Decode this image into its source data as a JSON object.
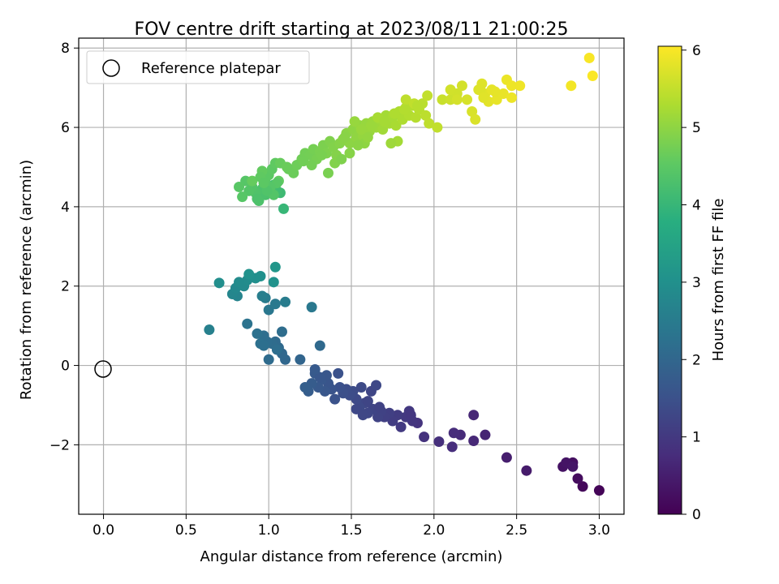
{
  "chart_data": {
    "type": "scatter",
    "title": "FOV centre drift starting at 2023/08/11 21:00:25",
    "xlabel": "Angular distance from reference (arcmin)",
    "ylabel": "Rotation from reference (arcmin)",
    "xlim": [
      -0.15,
      3.15
    ],
    "ylim": [
      -3.75,
      8.25
    ],
    "x_ticks": [
      0.0,
      0.5,
      1.0,
      1.5,
      2.0,
      2.5,
      3.0
    ],
    "x_tick_labels": [
      "0.0",
      "0.5",
      "1.0",
      "1.5",
      "2.0",
      "2.5",
      "3.0"
    ],
    "y_ticks": [
      -2,
      0,
      2,
      4,
      6,
      8
    ],
    "y_tick_labels": [
      "−2",
      "0",
      "2",
      "4",
      "6",
      "8"
    ],
    "grid": true,
    "legend": {
      "placement": "top-left",
      "entries": [
        "Reference platepar"
      ]
    },
    "reference_point": {
      "x": 0.0,
      "y": 0.0
    },
    "colorbar": {
      "label": "Hours from first FF file",
      "range": [
        0,
        6.05
      ],
      "ticks": [
        0,
        1,
        2,
        3,
        4,
        5,
        6
      ],
      "tick_labels": [
        "0",
        "1",
        "2",
        "3",
        "4",
        "5",
        "6"
      ],
      "colormap": "viridis"
    },
    "series": [
      {
        "points": [
          [
            3.0,
            -3.15,
            0.05
          ],
          [
            2.9,
            -3.05,
            0.12
          ],
          [
            2.87,
            -2.85,
            0.2
          ],
          [
            2.84,
            -2.45,
            0.25
          ],
          [
            2.78,
            -2.55,
            0.3
          ],
          [
            2.8,
            -2.45,
            0.33
          ],
          [
            2.84,
            -2.55,
            0.36
          ],
          [
            2.56,
            -2.65,
            0.45
          ],
          [
            2.44,
            -2.32,
            0.5
          ],
          [
            2.31,
            -1.75,
            0.6
          ],
          [
            2.24,
            -1.25,
            0.65
          ],
          [
            2.24,
            -1.9,
            0.68
          ],
          [
            2.16,
            -1.75,
            0.72
          ],
          [
            2.12,
            -1.7,
            0.75
          ],
          [
            2.11,
            -2.05,
            0.78
          ],
          [
            2.03,
            -1.92,
            0.82
          ],
          [
            1.94,
            -1.8,
            0.86
          ],
          [
            1.9,
            -1.45,
            0.9
          ],
          [
            1.87,
            -1.4,
            0.95
          ],
          [
            1.85,
            -1.15,
            0.98
          ],
          [
            1.83,
            -1.3,
            1.0
          ],
          [
            1.8,
            -1.55,
            1.03
          ],
          [
            1.78,
            -1.25,
            1.06
          ],
          [
            1.75,
            -1.4,
            1.09
          ],
          [
            1.73,
            -1.2,
            1.12
          ],
          [
            1.7,
            -1.3,
            1.15
          ],
          [
            1.68,
            -1.15,
            1.18
          ],
          [
            1.66,
            -1.3,
            1.2
          ],
          [
            1.63,
            -1.1,
            1.23
          ],
          [
            1.6,
            -1.2,
            1.26
          ],
          [
            1.58,
            -0.95,
            1.29
          ],
          [
            1.55,
            -1.05,
            1.32
          ],
          [
            1.53,
            -0.85,
            1.35
          ],
          [
            1.51,
            -0.65,
            1.38
          ],
          [
            1.49,
            -0.75,
            1.41
          ],
          [
            1.47,
            -0.6,
            1.44
          ],
          [
            1.45,
            -0.7,
            1.47
          ],
          [
            1.43,
            -0.55,
            1.5
          ],
          [
            1.4,
            -0.85,
            1.53
          ],
          [
            1.38,
            -0.6,
            1.56
          ],
          [
            1.36,
            -0.45,
            1.59
          ],
          [
            1.34,
            -0.65,
            1.62
          ],
          [
            1.32,
            -0.35,
            1.65
          ],
          [
            1.3,
            -0.55,
            1.68
          ],
          [
            1.28,
            -0.2,
            1.71
          ],
          [
            1.26,
            -0.45,
            1.74
          ],
          [
            1.24,
            -0.65,
            1.77
          ],
          [
            1.22,
            -0.55,
            1.8
          ],
          [
            1.6,
            -0.9,
            1.25
          ],
          [
            1.62,
            -0.65,
            1.27
          ],
          [
            1.65,
            -0.5,
            1.3
          ],
          [
            1.56,
            -0.55,
            1.34
          ],
          [
            1.42,
            -0.2,
            1.52
          ],
          [
            1.35,
            -0.25,
            1.6
          ],
          [
            1.31,
            -0.3,
            1.64
          ],
          [
            1.28,
            -0.1,
            1.7
          ],
          [
            1.53,
            -1.1,
            1.31
          ],
          [
            1.57,
            -1.25,
            1.28
          ],
          [
            1.86,
            -1.25,
            0.97
          ],
          [
            1.67,
            -1.05,
            1.18
          ],
          [
            1.19,
            0.15,
            1.95
          ],
          [
            1.1,
            0.15,
            2.0
          ],
          [
            1.08,
            0.3,
            2.03
          ],
          [
            1.06,
            0.45,
            2.06
          ],
          [
            1.04,
            0.6,
            2.09
          ],
          [
            1.02,
            0.55,
            2.12
          ],
          [
            0.99,
            0.6,
            2.15
          ],
          [
            0.97,
            0.75,
            2.18
          ],
          [
            0.95,
            0.55,
            2.21
          ],
          [
            0.93,
            0.8,
            2.24
          ],
          [
            1.0,
            0.15,
            2.1
          ],
          [
            1.08,
            0.85,
            2.14
          ],
          [
            1.05,
            0.4,
            2.17
          ],
          [
            0.97,
            0.5,
            2.2
          ],
          [
            1.31,
            0.5,
            2.05
          ],
          [
            0.87,
            1.05,
            2.3
          ],
          [
            1.0,
            1.4,
            2.4
          ],
          [
            1.04,
            1.55,
            2.45
          ],
          [
            0.98,
            1.7,
            2.5
          ],
          [
            1.1,
            1.6,
            2.52
          ],
          [
            0.96,
            1.75,
            2.55
          ],
          [
            1.26,
            1.47,
            2.42
          ],
          [
            0.64,
            0.9,
            2.6
          ],
          [
            0.81,
            1.75,
            2.7
          ],
          [
            0.78,
            1.8,
            2.75
          ],
          [
            0.8,
            1.95,
            2.8
          ],
          [
            0.85,
            2.0,
            2.85
          ],
          [
            0.87,
            2.15,
            2.9
          ],
          [
            0.82,
            2.1,
            2.88
          ],
          [
            0.7,
            2.08,
            2.95
          ],
          [
            0.92,
            2.2,
            2.98
          ],
          [
            0.95,
            2.25,
            3.0
          ],
          [
            0.88,
            2.3,
            3.05
          ],
          [
            1.03,
            2.1,
            3.05
          ],
          [
            1.04,
            2.48,
            3.15
          ],
          [
            1.09,
            3.95,
            4.0
          ],
          [
            1.07,
            4.35,
            4.1
          ],
          [
            1.05,
            4.4,
            4.15
          ],
          [
            1.03,
            4.55,
            4.2
          ],
          [
            1.0,
            4.4,
            4.25
          ],
          [
            0.98,
            4.3,
            4.28
          ],
          [
            0.96,
            4.45,
            4.3
          ],
          [
            0.94,
            4.15,
            4.32
          ],
          [
            0.92,
            4.35,
            4.35
          ],
          [
            0.9,
            4.5,
            4.38
          ],
          [
            0.88,
            4.4,
            4.4
          ],
          [
            0.86,
            4.65,
            4.42
          ],
          [
            0.84,
            4.25,
            4.44
          ],
          [
            0.82,
            4.5,
            4.46
          ],
          [
            0.98,
            4.7,
            4.48
          ],
          [
            1.0,
            4.8,
            4.5
          ],
          [
            1.02,
            4.95,
            4.52
          ],
          [
            1.04,
            5.1,
            4.55
          ],
          [
            1.06,
            4.65,
            4.57
          ],
          [
            0.96,
            4.9,
            4.58
          ],
          [
            0.9,
            4.65,
            4.6
          ],
          [
            1.07,
            5.1,
            4.62
          ],
          [
            1.12,
            4.95,
            4.64
          ],
          [
            1.15,
            4.85,
            4.66
          ],
          [
            1.17,
            5.05,
            4.68
          ],
          [
            1.2,
            5.2,
            4.7
          ],
          [
            1.22,
            5.35,
            4.72
          ],
          [
            1.25,
            5.3,
            4.74
          ],
          [
            1.27,
            5.45,
            4.76
          ],
          [
            1.29,
            5.2,
            4.78
          ],
          [
            1.31,
            5.4,
            4.8
          ],
          [
            1.33,
            5.55,
            4.82
          ],
          [
            1.35,
            5.35,
            4.84
          ],
          [
            1.37,
            5.65,
            4.86
          ],
          [
            1.39,
            5.5,
            4.88
          ],
          [
            1.41,
            5.3,
            4.9
          ],
          [
            1.43,
            5.6,
            4.92
          ],
          [
            1.45,
            5.7,
            4.94
          ],
          [
            1.47,
            5.85,
            4.96
          ],
          [
            1.49,
            5.6,
            4.98
          ],
          [
            1.51,
            5.95,
            5.0
          ],
          [
            1.53,
            5.75,
            5.02
          ],
          [
            1.55,
            6.05,
            5.04
          ],
          [
            1.57,
            5.8,
            5.06
          ],
          [
            1.59,
            6.1,
            5.08
          ],
          [
            1.61,
            5.9,
            5.1
          ],
          [
            1.63,
            6.15,
            5.12
          ],
          [
            1.65,
            6.0,
            5.14
          ],
          [
            1.67,
            6.2,
            5.16
          ],
          [
            1.69,
            5.95,
            5.18
          ],
          [
            1.71,
            6.3,
            5.2
          ],
          [
            1.73,
            6.1,
            5.22
          ],
          [
            1.75,
            6.25,
            5.24
          ],
          [
            1.77,
            6.05,
            5.26
          ],
          [
            1.79,
            6.4,
            5.28
          ],
          [
            1.81,
            6.2,
            5.3
          ],
          [
            1.83,
            6.5,
            5.32
          ],
          [
            1.85,
            6.3,
            5.34
          ],
          [
            1.87,
            6.55,
            5.36
          ],
          [
            1.89,
            6.25,
            5.38
          ],
          [
            1.91,
            6.45,
            5.4
          ],
          [
            1.93,
            6.6,
            5.42
          ],
          [
            1.95,
            6.3,
            5.44
          ],
          [
            1.97,
            6.1,
            5.46
          ],
          [
            2.02,
            6.0,
            5.48
          ],
          [
            1.83,
            6.7,
            5.45
          ],
          [
            1.88,
            6.6,
            5.47
          ],
          [
            1.96,
            6.8,
            5.49
          ],
          [
            1.78,
            5.65,
            5.2
          ],
          [
            1.74,
            5.6,
            5.15
          ],
          [
            1.58,
            5.6,
            5.0
          ],
          [
            1.54,
            5.55,
            4.97
          ],
          [
            1.49,
            5.35,
            4.93
          ],
          [
            1.4,
            5.1,
            4.88
          ],
          [
            1.36,
            4.85,
            4.8
          ],
          [
            1.44,
            5.2,
            4.85
          ],
          [
            1.6,
            5.75,
            5.05
          ],
          [
            1.56,
            5.95,
            5.1
          ],
          [
            1.62,
            6.05,
            5.12
          ],
          [
            1.52,
            6.15,
            5.08
          ],
          [
            1.05,
            4.6,
            4.45
          ],
          [
            1.03,
            4.3,
            4.4
          ],
          [
            1.01,
            4.5,
            4.42
          ],
          [
            0.99,
            4.4,
            4.36
          ],
          [
            0.93,
            4.2,
            4.32
          ],
          [
            0.95,
            4.75,
            4.55
          ],
          [
            0.97,
            4.6,
            4.5
          ],
          [
            1.11,
            5.0,
            4.65
          ],
          [
            1.21,
            5.15,
            4.72
          ],
          [
            1.26,
            5.05,
            4.75
          ],
          [
            1.32,
            5.3,
            4.8
          ],
          [
            1.46,
            5.75,
            4.95
          ],
          [
            1.66,
            6.25,
            5.25
          ],
          [
            1.7,
            6.15,
            5.22
          ],
          [
            1.76,
            6.35,
            5.3
          ],
          [
            1.82,
            6.45,
            5.35
          ],
          [
            1.9,
            6.55,
            5.4
          ],
          [
            2.05,
            6.7,
            5.55
          ],
          [
            2.1,
            6.7,
            5.6
          ],
          [
            2.14,
            6.85,
            5.62
          ],
          [
            2.17,
            7.05,
            5.65
          ],
          [
            2.2,
            6.7,
            5.68
          ],
          [
            2.23,
            6.4,
            5.7
          ],
          [
            2.25,
            6.2,
            5.72
          ],
          [
            2.27,
            6.95,
            5.74
          ],
          [
            2.29,
            7.1,
            5.76
          ],
          [
            2.31,
            6.85,
            5.78
          ],
          [
            2.33,
            6.65,
            5.8
          ],
          [
            2.35,
            6.95,
            5.82
          ],
          [
            2.38,
            6.7,
            5.84
          ],
          [
            2.42,
            6.85,
            5.86
          ],
          [
            2.44,
            7.2,
            5.88
          ],
          [
            2.47,
            6.75,
            5.9
          ],
          [
            2.52,
            7.05,
            5.92
          ],
          [
            2.1,
            6.95,
            5.63
          ],
          [
            2.14,
            6.7,
            5.66
          ],
          [
            2.28,
            6.95,
            5.75
          ],
          [
            2.3,
            6.75,
            5.78
          ],
          [
            2.37,
            6.9,
            5.83
          ],
          [
            2.47,
            7.05,
            5.91
          ],
          [
            2.83,
            7.05,
            5.96
          ],
          [
            2.94,
            7.75,
            6.0
          ],
          [
            2.96,
            7.3,
            6.02
          ]
        ]
      }
    ]
  }
}
